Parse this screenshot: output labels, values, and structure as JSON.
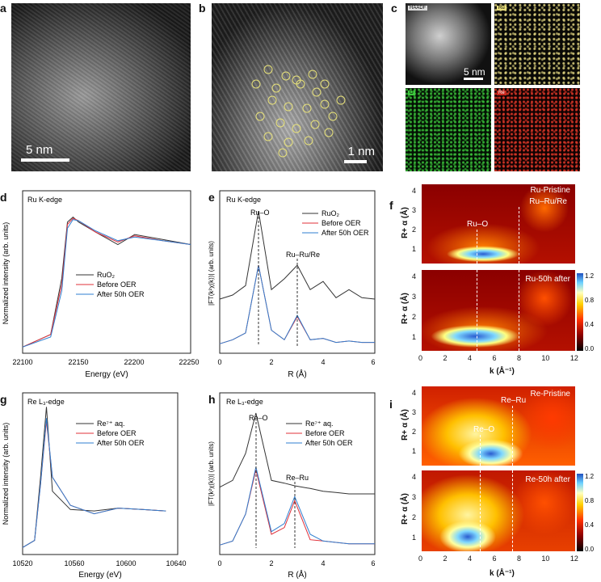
{
  "panels": {
    "a": {
      "letter": "a",
      "scale": "5 nm"
    },
    "b": {
      "letter": "b",
      "scale": "1 nm"
    },
    "c": {
      "letter": "c",
      "scale": "5 nm",
      "tags": [
        "HAADF",
        "Ru",
        "O",
        "Re"
      ],
      "colors": [
        "#f2e58a",
        "#3cc83c",
        "#e83a2a"
      ]
    },
    "d": {
      "letter": "d",
      "title": "Ru K-edge",
      "ylabel": "Normalized intensity (arb. units)",
      "xlabel": "Energy (eV)",
      "xticks": [
        "22100",
        "22150",
        "22200",
        "22250"
      ],
      "legend": [
        "RuO₂",
        "Before OER",
        "After 50h OER"
      ]
    },
    "e": {
      "letter": "e",
      "title": "Ru K-edge",
      "ylabel": "|FT(k²χ(k))| (arb. units)",
      "xlabel": "R (Å)",
      "xticks": [
        "0",
        "2",
        "4",
        "6"
      ],
      "legend": [
        "RuO₂",
        "Before OER",
        "After 50h OER"
      ],
      "annot": [
        "Ru–O",
        "Ru–Ru/Re"
      ]
    },
    "f": {
      "letter": "f",
      "top_label": "Ru-Pristine",
      "bottom_label": "Ru-50h after",
      "annot": [
        "Ru–Ru/Re",
        "Ru–O"
      ],
      "ylabel": "R+ α (Å)",
      "xlabel": "k (Å⁻¹)",
      "yticks": [
        "1",
        "2",
        "3",
        "4"
      ],
      "xticks": [
        "0",
        "2",
        "4",
        "6",
        "8",
        "10",
        "12"
      ],
      "cbticks": [
        "1.2",
        "0.8",
        "0.4",
        "0.0"
      ]
    },
    "g": {
      "letter": "g",
      "title": "Re L₃-edge",
      "ylabel": "Normalized intensity (arb. units)",
      "xlabel": "Energy (eV)",
      "xticks": [
        "10520",
        "10560",
        "10600",
        "10640"
      ],
      "legend": [
        "Re⁷⁺ aq.",
        "Before OER",
        "After 50h OER"
      ]
    },
    "h": {
      "letter": "h",
      "title": "Re L₃-edge",
      "ylabel": "|FT(k²χ(k))| (arb. units)",
      "xlabel": "R (Å)",
      "xticks": [
        "0",
        "2",
        "4",
        "6"
      ],
      "legend": [
        "Re⁷⁺ aq.",
        "Before OER",
        "After 50h OER"
      ],
      "annot": [
        "Re–O",
        "Re–Ru"
      ]
    },
    "i": {
      "letter": "i",
      "top_label": "Re-Pristine",
      "bottom_label": "Re-50h after",
      "annot": [
        "Re–Ru",
        "Re–O"
      ],
      "ylabel": "R+ α (Å)",
      "xlabel": "k (Å⁻¹)",
      "yticks": [
        "1",
        "2",
        "3",
        "4"
      ],
      "xticks": [
        "0",
        "2",
        "4",
        "6",
        "8",
        "10",
        "12"
      ],
      "cbticks": [
        "1.2",
        "0.8",
        "0.4",
        "0.0"
      ]
    }
  },
  "series_colors": [
    "#333333",
    "#e0303a",
    "#2f7fd0"
  ],
  "chart_data": [
    {
      "panel": "d",
      "type": "line",
      "x": [
        22100,
        22125,
        22135,
        22140,
        22145,
        22150,
        22165,
        22185,
        22200,
        22225,
        22250
      ],
      "series": [
        {
          "name": "RuO₂",
          "values": [
            0.0,
            0.1,
            0.55,
            1.0,
            1.04,
            1.0,
            0.92,
            0.82,
            0.9,
            0.86,
            0.82
          ]
        },
        {
          "name": "Before OER",
          "values": [
            0.0,
            0.1,
            0.5,
            0.98,
            1.03,
            1.01,
            0.92,
            0.84,
            0.89,
            0.85,
            0.82
          ]
        },
        {
          "name": "After 50h OER",
          "values": [
            0.0,
            0.08,
            0.45,
            0.95,
            1.02,
            1.01,
            0.93,
            0.85,
            0.88,
            0.85,
            0.82
          ]
        }
      ]
    },
    {
      "panel": "e",
      "type": "line",
      "x": [
        0,
        0.5,
        1.0,
        1.5,
        2.0,
        2.5,
        3.0,
        3.5,
        4.0,
        4.5,
        5.0,
        5.5,
        6.0
      ],
      "series": [
        {
          "name": "RuO₂",
          "values": [
            0.35,
            0.38,
            0.45,
            1.0,
            0.42,
            0.5,
            0.6,
            0.42,
            0.48,
            0.36,
            0.42,
            0.36,
            0.35
          ]
        },
        {
          "name": "Before OER",
          "values": [
            0.02,
            0.05,
            0.1,
            0.6,
            0.12,
            0.05,
            0.22,
            0.05,
            0.06,
            0.03,
            0.04,
            0.03,
            0.03
          ]
        },
        {
          "name": "After 50h OER",
          "values": [
            0.02,
            0.05,
            0.1,
            0.6,
            0.12,
            0.05,
            0.23,
            0.05,
            0.06,
            0.03,
            0.04,
            0.03,
            0.03
          ]
        }
      ]
    },
    {
      "panel": "g",
      "type": "line",
      "x": [
        10520,
        10530,
        10535,
        10540,
        10545,
        10560,
        10580,
        10600,
        10620,
        10640
      ],
      "series": [
        {
          "name": "Re⁷⁺ aq.",
          "values": [
            0.0,
            0.05,
            0.5,
            1.0,
            0.4,
            0.27,
            0.26,
            0.28,
            0.27,
            0.26
          ]
        },
        {
          "name": "Before OER",
          "values": [
            0.0,
            0.05,
            0.45,
            0.9,
            0.5,
            0.3,
            0.24,
            0.28,
            0.27,
            0.26
          ]
        },
        {
          "name": "After 50h OER",
          "values": [
            0.0,
            0.05,
            0.45,
            0.92,
            0.5,
            0.3,
            0.24,
            0.28,
            0.27,
            0.26
          ]
        }
      ]
    },
    {
      "panel": "h",
      "type": "line",
      "x": [
        0,
        0.5,
        1.0,
        1.4,
        2.0,
        2.5,
        2.9,
        3.5,
        4.0,
        4.5,
        5.0,
        5.5,
        6.0
      ],
      "series": [
        {
          "name": "Re⁷⁺ aq.",
          "values": [
            0.45,
            0.5,
            0.7,
            1.0,
            0.5,
            0.48,
            0.46,
            0.44,
            0.42,
            0.41,
            0.4,
            0.4,
            0.4
          ]
        },
        {
          "name": "Before OER",
          "values": [
            0.02,
            0.05,
            0.25,
            0.58,
            0.1,
            0.15,
            0.35,
            0.06,
            0.05,
            0.04,
            0.03,
            0.03,
            0.03
          ]
        },
        {
          "name": "After 50h OER",
          "values": [
            0.02,
            0.05,
            0.25,
            0.6,
            0.12,
            0.18,
            0.38,
            0.1,
            0.05,
            0.04,
            0.03,
            0.03,
            0.03
          ]
        }
      ]
    }
  ]
}
